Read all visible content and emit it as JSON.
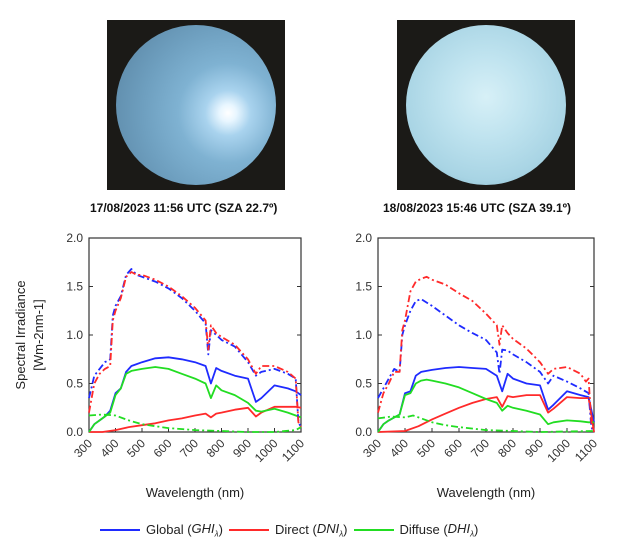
{
  "images": [
    {
      "caption": "17/08/2023  11:56 UTC (SZA 22.7º)"
    },
    {
      "caption": "18/08/2023 15:46 UTC (SZA 39.1º)"
    }
  ],
  "legend": [
    {
      "label": "Global (",
      "sym": "GHI",
      "sub": "λ",
      "close": ")",
      "color": "#1f2bff"
    },
    {
      "label": "Direct (",
      "sym": "DNI",
      "sub": "λ",
      "close": ")",
      "color": "#ff2a2a"
    },
    {
      "label": "Diffuse (",
      "sym": "DHI",
      "sub": "λ",
      "close": ")",
      "color": "#22dd22"
    }
  ],
  "chart_data": [
    {
      "type": "line",
      "title": "17/08/2023 11:56 UTC (SZA 22.7º)",
      "xlabel": "Wavelength (nm)",
      "ylabel": "Spectral Irradiance",
      "ylabel2": "[Wm-2nm-1]",
      "xlim": [
        300,
        1100
      ],
      "ylim": [
        0,
        2
      ],
      "xticks": [
        "300",
        "400",
        "500",
        "600",
        "700",
        "800",
        "900",
        "1000",
        "1100"
      ],
      "yticks": [
        "0.0",
        "0.5",
        "1.0",
        "1.5",
        "2.0"
      ],
      "series": [
        {
          "name": "Global measured",
          "style": "solid",
          "color": "#1f2bff",
          "x": [
            300,
            320,
            340,
            360,
            380,
            400,
            420,
            440,
            460,
            480,
            500,
            550,
            600,
            650,
            700,
            740,
            760,
            780,
            800,
            850,
            900,
            930,
            950,
            1000,
            1050,
            1080,
            1100
          ],
          "y": [
            0,
            0.08,
            0.12,
            0.16,
            0.22,
            0.4,
            0.45,
            0.62,
            0.68,
            0.7,
            0.72,
            0.76,
            0.77,
            0.75,
            0.72,
            0.68,
            0.5,
            0.66,
            0.63,
            0.58,
            0.55,
            0.31,
            0.35,
            0.48,
            0.45,
            0.42,
            0.38
          ]
        },
        {
          "name": "Direct measured",
          "style": "solid",
          "color": "#ff2a2a",
          "x": [
            300,
            350,
            400,
            450,
            500,
            550,
            600,
            650,
            700,
            740,
            760,
            780,
            800,
            850,
            900,
            930,
            950,
            1000,
            1050,
            1080,
            1100
          ],
          "y": [
            0,
            0,
            0.02,
            0.05,
            0.07,
            0.09,
            0.12,
            0.14,
            0.17,
            0.19,
            0.15,
            0.19,
            0.2,
            0.23,
            0.25,
            0.16,
            0.2,
            0.26,
            0.26,
            0.26,
            0.25
          ]
        },
        {
          "name": "Diffuse measured",
          "style": "solid",
          "color": "#22dd22",
          "x": [
            300,
            320,
            340,
            360,
            380,
            400,
            420,
            440,
            460,
            480,
            500,
            550,
            600,
            650,
            700,
            740,
            760,
            780,
            800,
            850,
            900,
            930,
            950,
            1000,
            1050,
            1080,
            1100
          ],
          "y": [
            0,
            0.08,
            0.12,
            0.16,
            0.2,
            0.38,
            0.45,
            0.6,
            0.63,
            0.64,
            0.65,
            0.67,
            0.65,
            0.6,
            0.55,
            0.5,
            0.35,
            0.48,
            0.43,
            0.38,
            0.3,
            0.22,
            0.21,
            0.24,
            0.2,
            0.17,
            0.15
          ]
        },
        {
          "name": "Global modelled",
          "style": "dashdot",
          "color": "#1f2bff",
          "x": [
            300,
            320,
            340,
            360,
            380,
            390,
            400,
            420,
            440,
            460,
            480,
            500,
            550,
            600,
            650,
            700,
            740,
            750,
            760,
            780,
            800,
            850,
            900,
            930,
            950,
            1000,
            1050,
            1080,
            1090,
            1100
          ],
          "y": [
            0.35,
            0.58,
            0.65,
            0.72,
            0.75,
            1.2,
            1.3,
            1.4,
            1.62,
            1.68,
            1.62,
            1.6,
            1.55,
            1.48,
            1.38,
            1.25,
            1.12,
            0.8,
            1.05,
            1.0,
            0.95,
            0.88,
            0.72,
            0.58,
            0.62,
            0.65,
            0.6,
            0.55,
            0.1,
            0.05
          ]
        },
        {
          "name": "Direct modelled",
          "style": "dashdot",
          "color": "#ff2a2a",
          "x": [
            300,
            320,
            340,
            360,
            380,
            390,
            400,
            420,
            440,
            460,
            480,
            500,
            550,
            600,
            650,
            700,
            740,
            750,
            760,
            780,
            800,
            850,
            900,
            930,
            950,
            1000,
            1050,
            1080,
            1090,
            1100
          ],
          "y": [
            0.2,
            0.5,
            0.6,
            0.65,
            0.68,
            1.15,
            1.25,
            1.38,
            1.6,
            1.65,
            1.62,
            1.62,
            1.57,
            1.5,
            1.4,
            1.28,
            1.15,
            0.85,
            1.1,
            1.02,
            0.98,
            0.9,
            0.75,
            0.6,
            0.68,
            0.68,
            0.62,
            0.55,
            0.1,
            0.05
          ]
        },
        {
          "name": "Diffuse modelled",
          "style": "dashdot",
          "color": "#22dd22",
          "x": [
            300,
            350,
            400,
            450,
            500,
            550,
            600,
            700,
            800,
            900,
            1000,
            1080,
            1100
          ],
          "y": [
            0.17,
            0.18,
            0.17,
            0.12,
            0.08,
            0.06,
            0.04,
            0.02,
            0.01,
            0,
            0,
            0.02,
            0.05
          ]
        }
      ]
    },
    {
      "type": "line",
      "title": "18/08/2023 15:46 UTC (SZA 39.1º)",
      "xlabel": "Wavelength (nm)",
      "xlim": [
        300,
        1100
      ],
      "ylim": [
        0,
        2
      ],
      "xticks": [
        "300",
        "400",
        "500",
        "600",
        "700",
        "800",
        "900",
        "1000",
        "1100"
      ],
      "yticks": [
        "0.0",
        "0.5",
        "1.0",
        "1.5",
        "2.0"
      ],
      "series": [
        {
          "name": "Global measured",
          "style": "solid",
          "color": "#1f2bff",
          "x": [
            300,
            320,
            340,
            380,
            400,
            420,
            440,
            460,
            500,
            550,
            600,
            650,
            700,
            740,
            760,
            780,
            800,
            850,
            900,
            930,
            950,
            1000,
            1050,
            1080,
            1100
          ],
          "y": [
            0,
            0.08,
            0.12,
            0.18,
            0.4,
            0.42,
            0.58,
            0.62,
            0.64,
            0.66,
            0.67,
            0.66,
            0.65,
            0.58,
            0.42,
            0.6,
            0.55,
            0.5,
            0.48,
            0.23,
            0.28,
            0.42,
            0.38,
            0.36,
            0.1
          ]
        },
        {
          "name": "Direct measured",
          "style": "solid",
          "color": "#ff2a2a",
          "x": [
            300,
            400,
            450,
            500,
            550,
            600,
            650,
            700,
            740,
            760,
            780,
            800,
            850,
            900,
            930,
            950,
            1000,
            1050,
            1080,
            1100
          ],
          "y": [
            0,
            0.01,
            0.06,
            0.13,
            0.19,
            0.25,
            0.3,
            0.34,
            0.36,
            0.26,
            0.37,
            0.36,
            0.38,
            0.38,
            0.2,
            0.24,
            0.36,
            0.35,
            0.35,
            0
          ]
        },
        {
          "name": "Diffuse measured",
          "style": "solid",
          "color": "#22dd22",
          "x": [
            300,
            320,
            340,
            380,
            400,
            420,
            440,
            460,
            480,
            500,
            550,
            600,
            650,
            700,
            740,
            760,
            780,
            800,
            850,
            900,
            930,
            950,
            1000,
            1050,
            1080,
            1100
          ],
          "y": [
            0,
            0.08,
            0.12,
            0.18,
            0.38,
            0.4,
            0.5,
            0.53,
            0.54,
            0.53,
            0.5,
            0.46,
            0.4,
            0.34,
            0.3,
            0.22,
            0.27,
            0.25,
            0.22,
            0.18,
            0.08,
            0.1,
            0.12,
            0.11,
            0.1,
            0.1
          ]
        },
        {
          "name": "Global modelled",
          "style": "dashdot",
          "color": "#1f2bff",
          "x": [
            300,
            320,
            340,
            360,
            380,
            390,
            400,
            420,
            440,
            460,
            500,
            550,
            600,
            650,
            700,
            740,
            750,
            760,
            780,
            800,
            850,
            900,
            930,
            950,
            1000,
            1050,
            1080,
            1090,
            1100
          ],
          "y": [
            0.35,
            0.45,
            0.55,
            0.65,
            0.62,
            1.0,
            1.1,
            1.25,
            1.35,
            1.37,
            1.3,
            1.2,
            1.1,
            1.02,
            0.95,
            0.82,
            0.6,
            0.85,
            0.84,
            0.8,
            0.72,
            0.62,
            0.5,
            0.58,
            0.52,
            0.45,
            0.4,
            0.05,
            0
          ]
        },
        {
          "name": "Direct modelled",
          "style": "dashdot",
          "color": "#ff2a2a",
          "x": [
            300,
            320,
            340,
            360,
            380,
            390,
            400,
            420,
            440,
            460,
            480,
            500,
            550,
            600,
            650,
            700,
            740,
            750,
            760,
            780,
            800,
            850,
            900,
            930,
            950,
            1000,
            1050,
            1070,
            1080,
            1090,
            1100
          ],
          "y": [
            0.2,
            0.4,
            0.5,
            0.62,
            0.62,
            1.05,
            1.15,
            1.45,
            1.55,
            1.58,
            1.6,
            1.57,
            1.52,
            1.43,
            1.35,
            1.22,
            1.1,
            0.9,
            1.1,
            1.02,
            0.96,
            0.86,
            0.72,
            0.6,
            0.65,
            0.67,
            0.6,
            0.52,
            0.55,
            0.1,
            0
          ]
        },
        {
          "name": "Diffuse modelled",
          "style": "dashdot",
          "color": "#22dd22",
          "x": [
            300,
            350,
            400,
            430,
            450,
            500,
            550,
            600,
            700,
            800,
            900,
            1100
          ],
          "y": [
            0.14,
            0.16,
            0.15,
            0.17,
            0.15,
            0.1,
            0.07,
            0.05,
            0.02,
            0.01,
            0,
            0.01
          ]
        }
      ]
    }
  ]
}
